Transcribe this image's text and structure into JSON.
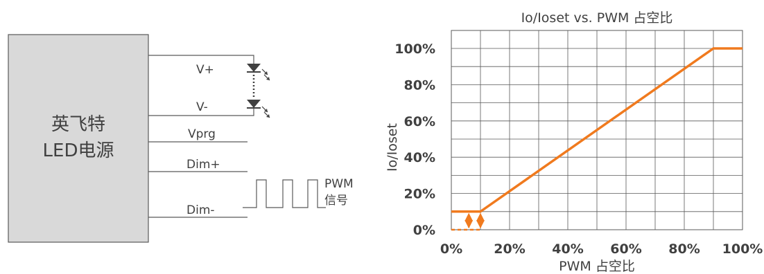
{
  "diagram": {
    "driver_label_line1": "英飞特",
    "driver_label_line2": "LED电源",
    "pins": [
      "V+",
      "V-",
      "Vprg",
      "Dim+",
      "Dim-"
    ],
    "signal_label_line1": "PWM",
    "signal_label_line2": "信号"
  },
  "chart_data": {
    "type": "line",
    "title": "Io/Ioset vs. PWM  占空比",
    "xlabel": "PWM  占空比",
    "ylabel": "Io/Ioset",
    "xlim": [
      0,
      100
    ],
    "ylim": [
      0,
      100
    ],
    "x_ticks": [
      "0%",
      "20%",
      "40%",
      "60%",
      "80%",
      "100%"
    ],
    "y_ticks": [
      "0%",
      "20%",
      "40%",
      "60%",
      "80%",
      "100%"
    ],
    "grid": true,
    "series": [
      {
        "x": [
          0,
          10,
          90,
          100
        ],
        "y": [
          10,
          10,
          100,
          100
        ],
        "color": "#f07a1e"
      },
      {
        "x": [
          0,
          10
        ],
        "y": [
          0,
          0
        ],
        "color": "#f07a1e",
        "style": "dashed"
      }
    ],
    "annotations": [
      {
        "type": "double-arrow",
        "x": [
          6,
          10
        ],
        "y": [
          0,
          10
        ],
        "style": "dashed",
        "color": "#f07a1e"
      }
    ]
  }
}
